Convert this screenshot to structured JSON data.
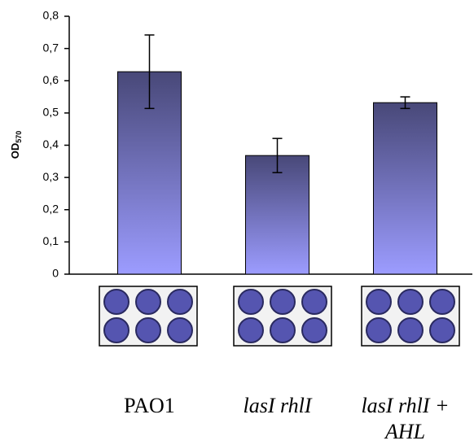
{
  "chart_data": {
    "type": "bar",
    "y_label": "OD",
    "y_label_sub": "570",
    "categories": [
      "PAO1",
      "lasI rhlI",
      "lasI rhlI + AHL"
    ],
    "italic_categories": [
      false,
      true,
      true
    ],
    "values": [
      0.628,
      0.368,
      0.532
    ],
    "errors": [
      0.114,
      0.053,
      0.018
    ],
    "color_top": "#484878",
    "color_bottom": "#9c9cff",
    "ylim": [
      0,
      0.8
    ],
    "yticks": [
      0,
      {
        "value": 0.1,
        "label": "0,1"
      },
      {
        "value": 0.2,
        "label": "0,2"
      },
      {
        "value": 0.3,
        "label": "0,3"
      },
      {
        "value": 0.4,
        "label": "0,4"
      },
      {
        "value": 0.5,
        "label": "0,5"
      },
      {
        "value": 0.6,
        "label": "0,6"
      },
      {
        "value": 0.7,
        "label": "0,7"
      },
      {
        "value": 0.8,
        "label": "0,8"
      }
    ]
  }
}
